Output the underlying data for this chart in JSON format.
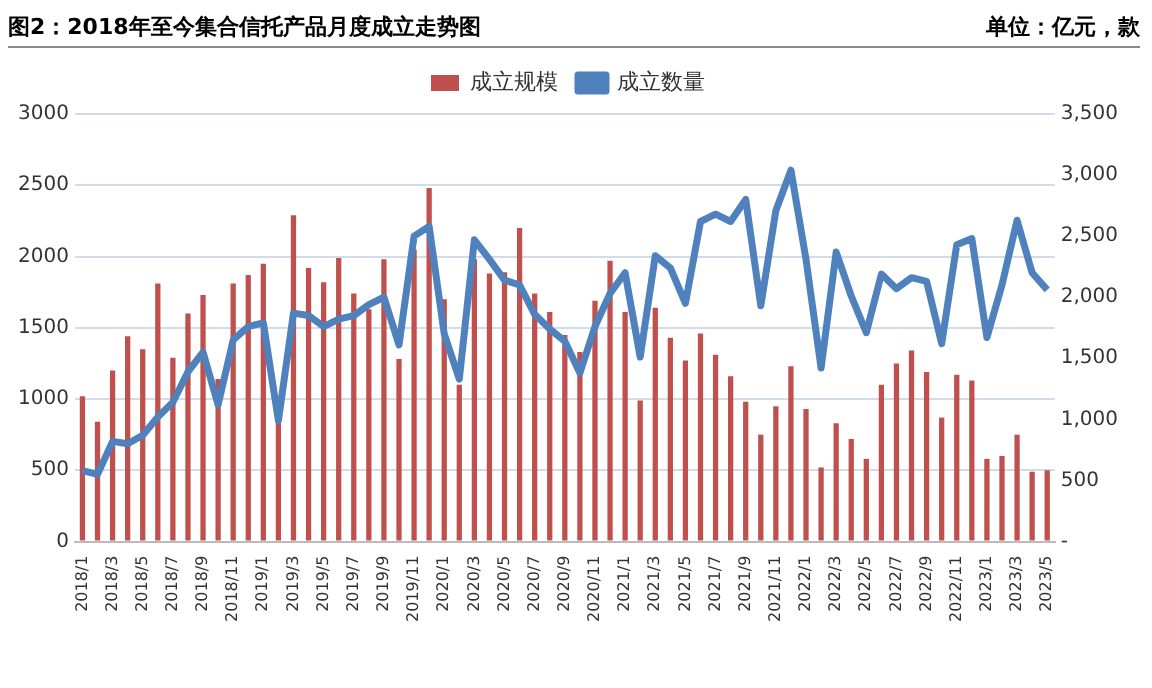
{
  "chart_data": {
    "type": "bar",
    "title": "图2：2018年至今集合信托产品月度成立走势图",
    "annotations": [
      "单位：亿元，款"
    ],
    "categories": [
      "2018/1",
      null,
      "2018/3",
      null,
      "2018/5",
      null,
      "2018/7",
      null,
      "2018/9",
      null,
      "2018/11",
      null,
      "2019/1",
      null,
      "2019/3",
      null,
      "2019/5",
      null,
      "2019/7",
      null,
      "2019/9",
      null,
      "2019/11",
      null,
      "2020/1",
      null,
      "2020/3",
      null,
      "2020/5",
      null,
      "2020/7",
      null,
      "2020/9",
      null,
      "2020/11",
      null,
      "2021/1",
      null,
      "2021/3",
      null,
      "2021/5",
      null,
      "2021/7",
      null,
      "2021/9",
      null,
      "2021/11",
      null,
      "2022/1",
      null,
      "2022/3",
      null,
      "2022/5",
      null,
      "2022/7",
      null,
      "2022/9",
      null,
      "2022/11",
      null,
      "2023/1",
      null,
      "2023/3",
      null,
      "2023/5"
    ],
    "series": [
      {
        "name": "成立规模",
        "color": "#c0504d",
        "values": [
          1020,
          840,
          1200,
          1440,
          1350,
          1810,
          1290,
          1600,
          1730,
          1140,
          1810,
          1870,
          1950,
          850,
          2290,
          1920,
          1820,
          1990,
          1740,
          1630,
          1980,
          1280,
          2050,
          2480,
          1700,
          1100,
          1980,
          1880,
          1890,
          2200,
          1740,
          1610,
          1450,
          1330,
          1690,
          1970,
          1610,
          990,
          1640,
          1430,
          1270,
          1460,
          1310,
          1160,
          980,
          750,
          950,
          1230,
          930,
          520,
          830,
          720,
          580,
          1100,
          1250,
          1340,
          1190,
          870,
          1170,
          1130,
          580,
          600,
          750,
          490,
          500
        ]
      },
      {
        "name": "成立数量",
        "type": "line",
        "axis": "y2",
        "color": "#4f81bd",
        "values": [
          580,
          550,
          820,
          800,
          870,
          1020,
          1140,
          1390,
          1550,
          1120,
          1650,
          1760,
          1790,
          990,
          1870,
          1850,
          1760,
          1820,
          1850,
          1940,
          2000,
          1610,
          2500,
          2580,
          1700,
          1330,
          2470,
          2310,
          2140,
          2100,
          1860,
          1740,
          1640,
          1380,
          1760,
          2030,
          2200,
          1510,
          2340,
          2240,
          1950,
          2620,
          2680,
          2620,
          2800,
          1930,
          2710,
          3040,
          2310,
          1420,
          2370,
          2010,
          1710,
          2190,
          2070,
          2160,
          2130,
          1620,
          2430,
          2480,
          1670,
          2100,
          2630,
          2200,
          2060
        ]
      }
    ],
    "ylim": [
      0,
      3000
    ],
    "yticks": [
      0,
      500,
      1000,
      1500,
      2000,
      2500,
      3000
    ],
    "y2lim": [
      0,
      3500
    ],
    "y2ticks": [
      {
        "value": 0,
        "label": "-"
      },
      500,
      {
        "value": 1000,
        "label": "1,000"
      },
      {
        "value": 1500,
        "label": "1,500"
      },
      {
        "value": 2000,
        "label": "2,000"
      },
      {
        "value": 2500,
        "label": "2,500"
      },
      {
        "value": 3000,
        "label": "3,000"
      },
      {
        "value": 3500,
        "label": "3,500"
      }
    ],
    "grid": "y",
    "legend": "top",
    "marker": "none",
    "line_style": "solid"
  }
}
